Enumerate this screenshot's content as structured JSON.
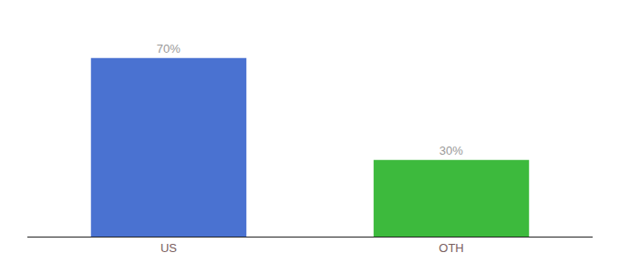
{
  "chart_data": {
    "type": "bar",
    "categories": [
      "US",
      "OTH"
    ],
    "values": [
      70,
      30
    ],
    "value_labels": [
      "70%",
      "30%"
    ],
    "colors": [
      "#4a72d1",
      "#3dba3d"
    ],
    "ylim": [
      0,
      82
    ],
    "data_labels": true,
    "tick_labels": "x",
    "grid": false
  }
}
